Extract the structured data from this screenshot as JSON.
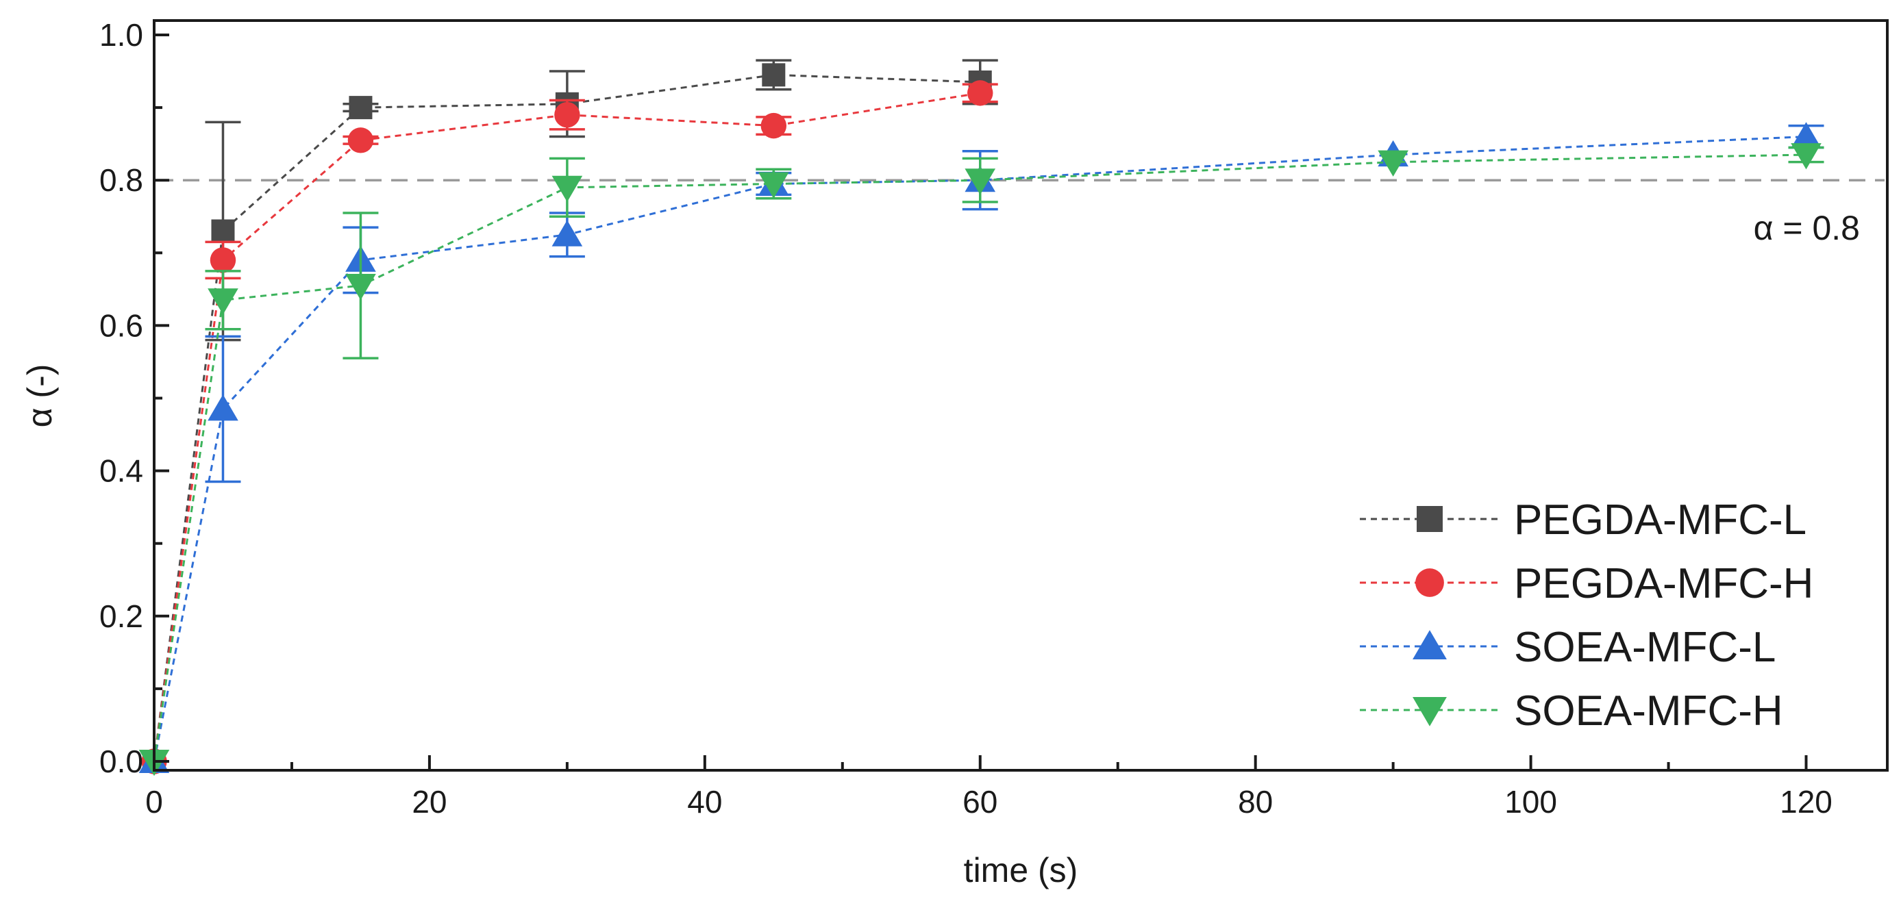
{
  "chart_data": {
    "type": "line",
    "title": "",
    "xlabel": "time (s)",
    "ylabel": "α (-)",
    "xlim": [
      0,
      125
    ],
    "ylim": [
      0,
      1.0
    ],
    "x_ticks": [
      0,
      20,
      40,
      60,
      80,
      100,
      120
    ],
    "x_tick_labels": [
      "0",
      "20",
      "40",
      "60",
      "80",
      "100",
      "120"
    ],
    "y_ticks": [
      0.0,
      0.2,
      0.4,
      0.6,
      0.8,
      1.0
    ],
    "y_tick_labels": [
      "0.0",
      "0.2",
      "0.4",
      "0.6",
      "0.8",
      "1.0"
    ],
    "grid": false,
    "legend_position": "bottom-right",
    "reference_line": {
      "y": 0.8,
      "label": "α = 0.8",
      "color": "#9a9a9a"
    },
    "series": [
      {
        "name": "PEGDA-MFC-L",
        "color": "#4a4a4a",
        "marker": "square",
        "x": [
          0,
          5,
          15,
          30,
          45,
          60
        ],
        "y": [
          0.0,
          0.73,
          0.9,
          0.905,
          0.945,
          0.935
        ],
        "err": [
          0.0,
          0.15,
          0.005,
          0.045,
          0.02,
          0.03
        ]
      },
      {
        "name": "PEGDA-MFC-H",
        "color": "#e8383d",
        "marker": "circle",
        "x": [
          0,
          5,
          15,
          30,
          45,
          60
        ],
        "y": [
          0.0,
          0.69,
          0.855,
          0.89,
          0.875,
          0.92
        ],
        "err": [
          0.0,
          0.025,
          0.005,
          0.02,
          0.012,
          0.012
        ]
      },
      {
        "name": "SOEA-MFC-L",
        "color": "#2f6fd6",
        "marker": "triangle-up",
        "x": [
          0,
          5,
          15,
          30,
          45,
          60,
          90,
          120
        ],
        "y": [
          0.0,
          0.485,
          0.69,
          0.725,
          0.795,
          0.8,
          0.835,
          0.86
        ],
        "err": [
          0.0,
          0.1,
          0.045,
          0.03,
          0.015,
          0.04,
          0.0,
          0.015
        ]
      },
      {
        "name": "SOEA-MFC-H",
        "color": "#3cb35c",
        "marker": "triangle-down",
        "x": [
          0,
          5,
          15,
          30,
          45,
          60,
          90,
          120
        ],
        "y": [
          0.0,
          0.635,
          0.655,
          0.79,
          0.795,
          0.8,
          0.825,
          0.835
        ],
        "err": [
          0.0,
          0.04,
          0.1,
          0.04,
          0.02,
          0.03,
          0.0,
          0.01
        ]
      }
    ]
  }
}
